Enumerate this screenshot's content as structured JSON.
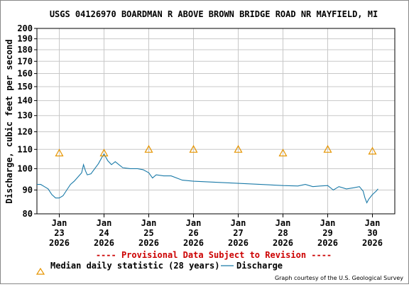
{
  "chart_data": {
    "type": "line",
    "title": "USGS 04126970 BOARDMAN R ABOVE BROWN BRIDGE ROAD NR MAYFIELD, MI",
    "ylabel": "Discharge, cubic feet per second",
    "y_scale": "log",
    "ylim": [
      80,
      200
    ],
    "y_ticks": [
      80,
      90,
      100,
      110,
      120,
      130,
      140,
      150,
      160,
      170,
      180,
      190,
      200
    ],
    "x_range": [
      "2026-01-22 12:00",
      "2026-01-30 12:00"
    ],
    "x_ticks": [
      {
        "x": "2026-01-23",
        "label": [
          "Jan",
          "23",
          "2026"
        ]
      },
      {
        "x": "2026-01-24",
        "label": [
          "Jan",
          "24",
          "2026"
        ]
      },
      {
        "x": "2026-01-25",
        "label": [
          "Jan",
          "25",
          "2026"
        ]
      },
      {
        "x": "2026-01-26",
        "label": [
          "Jan",
          "26",
          "2026"
        ]
      },
      {
        "x": "2026-01-27",
        "label": [
          "Jan",
          "27",
          "2026"
        ]
      },
      {
        "x": "2026-01-28",
        "label": [
          "Jan",
          "28",
          "2026"
        ]
      },
      {
        "x": "2026-01-29",
        "label": [
          "Jan",
          "29",
          "2026"
        ]
      },
      {
        "x": "2026-01-30",
        "label": [
          "Jan",
          "30",
          "2026"
        ]
      }
    ],
    "grid": true,
    "series": [
      {
        "name": "Discharge",
        "color": "#1a7aa8",
        "points": [
          [
            "2026-01-22 12:00",
            92.5
          ],
          [
            "2026-01-22 14:00",
            92.5
          ],
          [
            "2026-01-22 16:00",
            91.5
          ],
          [
            "2026-01-22 18:00",
            90.5
          ],
          [
            "2026-01-22 20:00",
            88
          ],
          [
            "2026-01-22 22:00",
            86.5
          ],
          [
            "2026-01-23 00:00",
            86.5
          ],
          [
            "2026-01-23 02:00",
            87.5
          ],
          [
            "2026-01-23 04:00",
            90
          ],
          [
            "2026-01-23 06:00",
            92.5
          ],
          [
            "2026-01-23 08:00",
            94
          ],
          [
            "2026-01-23 10:00",
            96
          ],
          [
            "2026-01-23 12:00",
            98
          ],
          [
            "2026-01-23 13:00",
            102
          ],
          [
            "2026-01-23 14:00",
            99
          ],
          [
            "2026-01-23 15:00",
            97
          ],
          [
            "2026-01-23 17:00",
            97.5
          ],
          [
            "2026-01-23 19:00",
            100
          ],
          [
            "2026-01-23 21:00",
            102.5
          ],
          [
            "2026-01-23 23:00",
            106
          ],
          [
            "2026-01-24 00:00",
            107.5
          ],
          [
            "2026-01-24 02:00",
            104
          ],
          [
            "2026-01-24 04:00",
            102
          ],
          [
            "2026-01-24 06:00",
            103.5
          ],
          [
            "2026-01-24 08:00",
            102
          ],
          [
            "2026-01-24 10:00",
            100.5
          ],
          [
            "2026-01-24 14:00",
            100
          ],
          [
            "2026-01-24 18:00",
            100
          ],
          [
            "2026-01-24 21:00",
            99.5
          ],
          [
            "2026-01-25 00:00",
            98
          ],
          [
            "2026-01-25 02:00",
            95.5
          ],
          [
            "2026-01-25 04:00",
            97
          ],
          [
            "2026-01-25 08:00",
            96.5
          ],
          [
            "2026-01-25 12:00",
            96.5
          ],
          [
            "2026-01-25 18:00",
            94.5
          ],
          [
            "2026-01-26 00:00",
            94
          ],
          [
            "2026-01-26 12:00",
            93.5
          ],
          [
            "2026-01-27 00:00",
            93
          ],
          [
            "2026-01-27 12:00",
            92.5
          ],
          [
            "2026-01-28 00:00",
            92
          ],
          [
            "2026-01-28 08:00",
            91.8
          ],
          [
            "2026-01-28 12:00",
            92.5
          ],
          [
            "2026-01-28 16:00",
            91.5
          ],
          [
            "2026-01-28 20:00",
            91.8
          ],
          [
            "2026-01-29 00:00",
            92
          ],
          [
            "2026-01-29 03:00",
            90
          ],
          [
            "2026-01-29 06:00",
            91.5
          ],
          [
            "2026-01-29 10:00",
            90.5
          ],
          [
            "2026-01-29 14:00",
            91
          ],
          [
            "2026-01-29 17:00",
            91.5
          ],
          [
            "2026-01-29 19:00",
            89.5
          ],
          [
            "2026-01-29 20:00",
            86.5
          ],
          [
            "2026-01-29 21:00",
            84.5
          ],
          [
            "2026-01-29 22:00",
            86
          ],
          [
            "2026-01-30 00:00",
            88
          ],
          [
            "2026-01-30 02:00",
            89.5
          ],
          [
            "2026-01-30 03:00",
            90.5
          ]
        ]
      },
      {
        "name": "Median daily statistic (28 years)",
        "marker": "triangle",
        "color": "#e69500",
        "points": [
          [
            "2026-01-23",
            108
          ],
          [
            "2026-01-24",
            108
          ],
          [
            "2026-01-25",
            110
          ],
          [
            "2026-01-26",
            110
          ],
          [
            "2026-01-27",
            110
          ],
          [
            "2026-01-28",
            108
          ],
          [
            "2026-01-29",
            110
          ],
          [
            "2026-01-30",
            109
          ]
        ]
      }
    ]
  },
  "provisional_notice": "---- Provisional Data Subject to Revision ----",
  "legend": {
    "median_label": "Median daily statistic (28 years)",
    "discharge_label": "Discharge"
  },
  "credit": "Graph courtesy of the U.S. Geological Survey"
}
